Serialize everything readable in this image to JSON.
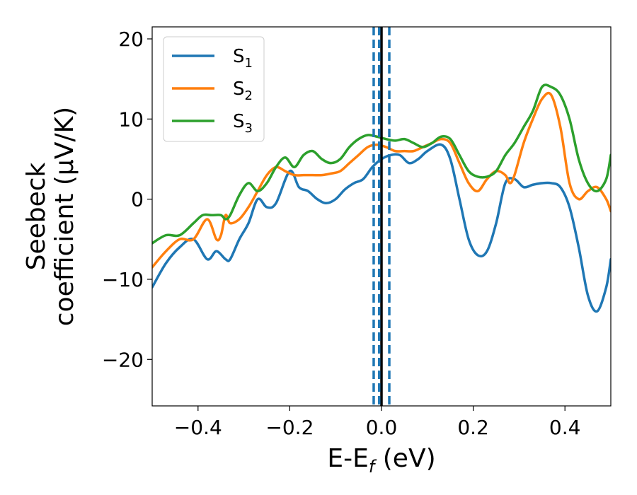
{
  "chart_data": {
    "type": "line",
    "title": "",
    "xlabel_main": "E-E",
    "xlabel_sub": "f",
    "xlabel_unit": " (eV)",
    "ylabel_line1": "Seebeck",
    "ylabel_line2": "coefficient  (μV/K)",
    "xlim": [
      -0.5,
      0.5
    ],
    "ylim": [
      -25.8,
      21.5
    ],
    "xticks": [
      -0.4,
      -0.2,
      0.0,
      0.2,
      0.4
    ],
    "xtick_labels": [
      "−0.4",
      "−0.2",
      "0.0",
      "0.2",
      "0.4"
    ],
    "yticks": [
      -20,
      -10,
      0,
      10,
      20
    ],
    "ytick_labels": [
      "−20",
      "−10",
      "0",
      "10",
      "20"
    ],
    "vlines": [
      {
        "x": 0.0,
        "style": "solid",
        "color": "#000000"
      },
      {
        "x": -0.017,
        "style": "dashed",
        "color": "#1f77b4"
      },
      {
        "x": -0.005,
        "style": "dashed",
        "color": "#1f77b4"
      },
      {
        "x": 0.017,
        "style": "dashed",
        "color": "#1f77b4"
      }
    ],
    "legend_position": "upper-left",
    "series": [
      {
        "name": "S",
        "sub": "1",
        "color": "#1f77b4",
        "x": [
          -0.5,
          -0.47,
          -0.44,
          -0.41,
          -0.38,
          -0.36,
          -0.34,
          -0.33,
          -0.31,
          -0.29,
          -0.27,
          -0.25,
          -0.23,
          -0.2,
          -0.18,
          -0.16,
          -0.14,
          -0.12,
          -0.1,
          -0.08,
          -0.06,
          -0.04,
          -0.02,
          0.0,
          0.02,
          0.04,
          0.06,
          0.08,
          0.1,
          0.13,
          0.15,
          0.17,
          0.19,
          0.21,
          0.23,
          0.25,
          0.27,
          0.29,
          0.31,
          0.33,
          0.35,
          0.37,
          0.39,
          0.41,
          0.43,
          0.45,
          0.47,
          0.49,
          0.5
        ],
        "y": [
          -11,
          -8,
          -6,
          -5,
          -7.5,
          -6.5,
          -7.5,
          -7.5,
          -5,
          -3,
          0,
          -1,
          -0.5,
          3.5,
          1.5,
          1,
          0,
          -0.5,
          0,
          1.2,
          2,
          2.5,
          4,
          5,
          5.5,
          5.5,
          4.5,
          5,
          6,
          6.8,
          5,
          0,
          -5,
          -7,
          -6.5,
          -3,
          2,
          2.5,
          1.5,
          1.8,
          2,
          2,
          1.5,
          -1,
          -6,
          -12,
          -14,
          -11,
          -7.5
        ]
      },
      {
        "name": "S",
        "sub": "2",
        "color": "#ff7f0e",
        "x": [
          -0.5,
          -0.47,
          -0.44,
          -0.41,
          -0.38,
          -0.36,
          -0.35,
          -0.34,
          -0.33,
          -0.31,
          -0.29,
          -0.27,
          -0.25,
          -0.23,
          -0.21,
          -0.19,
          -0.17,
          -0.15,
          -0.13,
          -0.11,
          -0.09,
          -0.07,
          -0.05,
          -0.03,
          -0.01,
          0.01,
          0.03,
          0.05,
          0.07,
          0.09,
          0.11,
          0.13,
          0.15,
          0.17,
          0.19,
          0.21,
          0.23,
          0.25,
          0.27,
          0.28,
          0.29,
          0.31,
          0.33,
          0.35,
          0.37,
          0.39,
          0.41,
          0.43,
          0.45,
          0.47,
          0.49,
          0.5
        ],
        "y": [
          -8.5,
          -6.5,
          -5,
          -5,
          -2.5,
          -5,
          -4.5,
          -2,
          -3,
          -2.5,
          -1,
          1,
          3,
          4,
          3.5,
          3,
          3,
          3,
          3,
          3.2,
          3.5,
          4.5,
          5.5,
          6.5,
          6.8,
          6.5,
          6,
          6,
          6,
          6.5,
          7,
          7.5,
          7,
          4.5,
          2,
          1,
          2.5,
          3.5,
          3,
          2,
          3,
          7,
          10,
          12.5,
          13,
          9,
          2,
          0,
          1,
          1.5,
          0,
          -1.5
        ]
      },
      {
        "name": "S",
        "sub": "3",
        "color": "#2ca02c",
        "x": [
          -0.5,
          -0.47,
          -0.44,
          -0.41,
          -0.39,
          -0.37,
          -0.35,
          -0.34,
          -0.33,
          -0.31,
          -0.29,
          -0.27,
          -0.25,
          -0.23,
          -0.21,
          -0.19,
          -0.17,
          -0.15,
          -0.13,
          -0.11,
          -0.09,
          -0.07,
          -0.05,
          -0.03,
          -0.01,
          0.01,
          0.03,
          0.05,
          0.07,
          0.09,
          0.11,
          0.13,
          0.15,
          0.17,
          0.19,
          0.21,
          0.23,
          0.25,
          0.27,
          0.29,
          0.31,
          0.33,
          0.35,
          0.37,
          0.39,
          0.41,
          0.43,
          0.45,
          0.47,
          0.49,
          0.5
        ],
        "y": [
          -5.5,
          -4.5,
          -4.5,
          -3,
          -2,
          -2,
          -2,
          -2.5,
          -2,
          0.5,
          2,
          1,
          2,
          4,
          5.2,
          4,
          5.5,
          6,
          5,
          4.5,
          5,
          6.5,
          7.5,
          8,
          7.8,
          7.5,
          7.3,
          7.5,
          7,
          6.5,
          7,
          7.8,
          7.5,
          5.5,
          3.5,
          2.8,
          2.8,
          3.5,
          5.5,
          7,
          9,
          11,
          14,
          14,
          13,
          10,
          5,
          2,
          1,
          2.5,
          5.5
        ]
      }
    ]
  }
}
